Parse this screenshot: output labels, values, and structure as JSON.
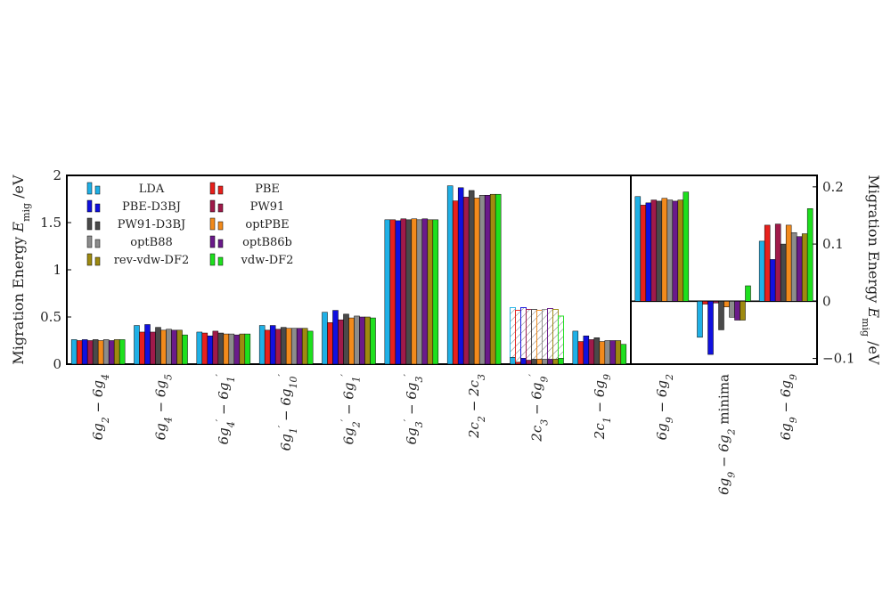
{
  "chart_data": [
    {
      "type": "bar",
      "panel": "left",
      "ylabel": "Migration Energy E_mig /eV",
      "ylim": [
        0,
        2.0
      ],
      "yticks": [
        "0",
        "0.5",
        "1",
        "1.5",
        "2"
      ],
      "legend_position": "top-left",
      "categories": [
        "6g2 − 6g4",
        "6g4 − 6g5",
        "6g4' − 6g1'",
        "6g1' − 6g10'",
        "6g2' − 6g1'",
        "6g3' − 6g3'",
        "2c2 − 2c3",
        "2c3 − 6g9'",
        "2c1 − 6g9"
      ],
      "series": [
        {
          "name": "LDA",
          "color": "#1fb0e6",
          "values": [
            0.26,
            0.41,
            0.34,
            0.41,
            0.55,
            1.53,
            1.89,
            0.07,
            0.35
          ]
        },
        {
          "name": "PBE",
          "color": "#e8201c",
          "values": [
            0.25,
            0.34,
            0.33,
            0.36,
            0.44,
            1.53,
            1.73,
            0.02,
            0.24
          ]
        },
        {
          "name": "PBE-D3BJ",
          "color": "#1010e0",
          "values": [
            0.26,
            0.42,
            0.3,
            0.41,
            0.57,
            1.52,
            1.87,
            0.06,
            0.3
          ]
        },
        {
          "name": "PW91",
          "color": "#a01a4a",
          "values": [
            0.25,
            0.34,
            0.35,
            0.37,
            0.47,
            1.54,
            1.77,
            0.04,
            0.26
          ]
        },
        {
          "name": "PW91-D3BJ",
          "color": "#4a4a4a",
          "values": [
            0.26,
            0.39,
            0.33,
            0.39,
            0.53,
            1.53,
            1.84,
            0.05,
            0.28
          ]
        },
        {
          "name": "optPBE",
          "color": "#f28a1c",
          "values": [
            0.25,
            0.36,
            0.32,
            0.38,
            0.49,
            1.54,
            1.76,
            0.05,
            0.24
          ]
        },
        {
          "name": "optB88",
          "color": "#8c8c8c",
          "values": [
            0.26,
            0.37,
            0.32,
            0.38,
            0.51,
            1.53,
            1.79,
            0.05,
            0.25
          ]
        },
        {
          "name": "optB86b",
          "color": "#6a1a8a",
          "values": [
            0.25,
            0.36,
            0.31,
            0.38,
            0.5,
            1.54,
            1.79,
            0.05,
            0.25
          ]
        },
        {
          "name": "rev-vdw-DF2",
          "color": "#9e8a10",
          "values": [
            0.26,
            0.36,
            0.32,
            0.38,
            0.5,
            1.53,
            1.8,
            0.05,
            0.25
          ]
        },
        {
          "name": "vdw-DF2",
          "color": "#1ee01e",
          "values": [
            0.26,
            0.31,
            0.32,
            0.35,
            0.49,
            1.53,
            1.8,
            0.06,
            0.21
          ]
        }
      ],
      "hatched_tops": {
        "category_index": 7,
        "values": [
          0.6,
          0.57,
          0.6,
          0.58,
          0.58,
          0.57,
          0.58,
          0.59,
          0.58,
          0.51
        ]
      }
    },
    {
      "type": "bar",
      "panel": "right",
      "ylabel": "Migration Energy E_mig /eV",
      "ylim": [
        -0.11,
        0.22
      ],
      "yticks": [
        "−0.1",
        "0",
        "0.1",
        "0.2"
      ],
      "categories": [
        "6g9 − 6g2",
        "6g9 − 6g2 minima",
        "6g9 − 6g9"
      ],
      "series": [
        {
          "name": "LDA",
          "color": "#1fb0e6",
          "values": [
            0.183,
            -0.063,
            0.105
          ]
        },
        {
          "name": "PBE",
          "color": "#e8201c",
          "values": [
            0.168,
            -0.005,
            0.133
          ]
        },
        {
          "name": "PBE-D3BJ",
          "color": "#1010e0",
          "values": [
            0.172,
            -0.093,
            0.073
          ]
        },
        {
          "name": "PW91",
          "color": "#a01a4a",
          "values": [
            0.177,
            -0.003,
            0.135
          ]
        },
        {
          "name": "PW91-D3BJ",
          "color": "#4a4a4a",
          "values": [
            0.175,
            -0.05,
            0.1
          ]
        },
        {
          "name": "optPBE",
          "color": "#f28a1c",
          "values": [
            0.18,
            -0.01,
            0.133
          ]
        },
        {
          "name": "optB88",
          "color": "#8c8c8c",
          "values": [
            0.177,
            -0.028,
            0.12
          ]
        },
        {
          "name": "optB86b",
          "color": "#6a1a8a",
          "values": [
            0.175,
            -0.033,
            0.113
          ]
        },
        {
          "name": "rev-vdw-DF2",
          "color": "#9e8a10",
          "values": [
            0.177,
            -0.033,
            0.118
          ]
        },
        {
          "name": "vdw-DF2",
          "color": "#1ee01e",
          "values": [
            0.191,
            0.027,
            0.162
          ]
        }
      ]
    }
  ]
}
